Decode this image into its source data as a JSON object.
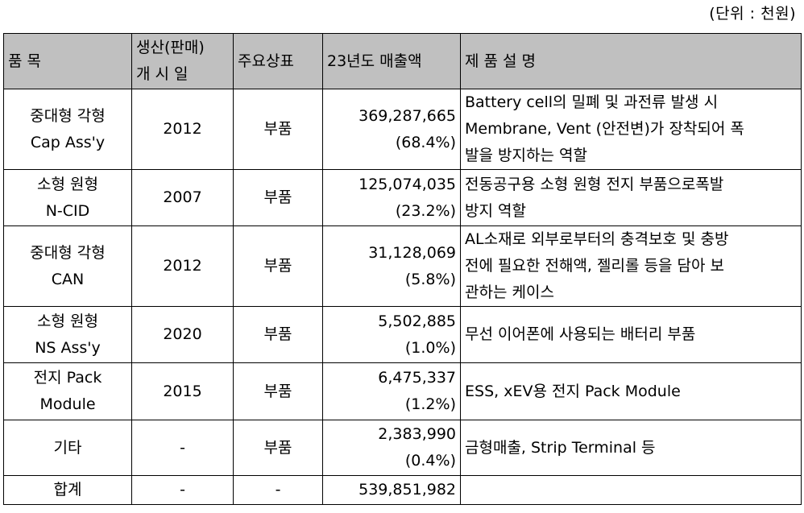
{
  "unit_note": "(단위 : 천원)",
  "headers": {
    "item": "품 목",
    "launch_1": "생산(판매)",
    "launch_2": "개 시 일",
    "brand": "주요상표",
    "sales": "23년도 매출액",
    "desc": "제 품 설 명"
  },
  "rows": [
    {
      "item": [
        "중대형 각형",
        "Cap Ass'y"
      ],
      "launch": "2012",
      "brand": "부품",
      "amount": "369,287,665",
      "share": "(68.4%)",
      "desc": [
        "Battery cell의 밀폐 및 과전류 발생 시",
        "Membrane, Vent (안전변)가 장착되어 폭",
        "발을 방지하는 역할"
      ]
    },
    {
      "item": [
        "소형 원형",
        "N-CID"
      ],
      "launch": "2007",
      "brand": "부품",
      "amount": "125,074,035",
      "share": "(23.2%)",
      "desc": [
        "전동공구용 소형 원형 전지 부품으로폭발",
        "방지 역할"
      ]
    },
    {
      "item": [
        "중대형 각형",
        "CAN"
      ],
      "launch": "2012",
      "brand": "부품",
      "amount": "31,128,069",
      "share": "(5.8%)",
      "desc": [
        "AL소재로 외부로부터의 충격보호 및 충방",
        "전에 필요한 전해액, 젤리롤 등을 담아 보",
        "관하는 케이스"
      ]
    },
    {
      "item": [
        "소형 원형",
        "NS Ass'y"
      ],
      "launch": "2020",
      "brand": "부품",
      "amount": "5,502,885",
      "share": "(1.0%)",
      "desc": [
        "무선 이어폰에 사용되는 배터리 부품"
      ]
    },
    {
      "item": [
        "전지 Pack",
        "Module"
      ],
      "launch": "2015",
      "brand": "부품",
      "amount": "6,475,337",
      "share": "(1.2%)",
      "desc": [
        "ESS, xEV용 전지 Pack Module"
      ]
    },
    {
      "item": [
        "기타"
      ],
      "launch": "-",
      "brand": "부품",
      "amount": "2,383,990",
      "share": "(0.4%)",
      "desc": [
        "금형매출, Strip Terminal 등"
      ]
    }
  ],
  "total": {
    "item": "합계",
    "launch": "-",
    "brand": "-",
    "amount": "539,851,982",
    "desc": ""
  }
}
